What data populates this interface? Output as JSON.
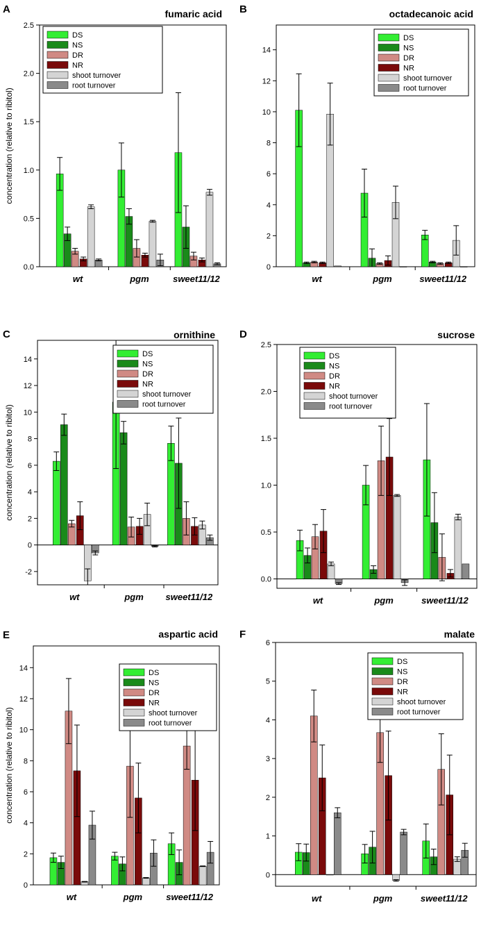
{
  "figure": {
    "series_colors": [
      "#33ee33",
      "#1a8a1a",
      "#d08a84",
      "#7a0a0a",
      "#d4d4d4",
      "#8a8a8a"
    ]
  },
  "chart_data": [
    {
      "panel_label": "A",
      "title": "fumaric acid",
      "type": "bar",
      "ylabel": "concentration (relative to ribitol)",
      "xlabel": "",
      "categories": [
        "wt",
        "pgm",
        "sweet11/12"
      ],
      "ylim": [
        0,
        2.5
      ],
      "yticks": [
        0.0,
        0.5,
        1.0,
        1.5,
        2.0,
        2.5
      ],
      "ytick_labels": [
        "0.0",
        "0.5",
        "1.0",
        "1.5",
        "2.0",
        "2.5"
      ],
      "legend": {
        "position": "top-left",
        "entries": [
          "DS",
          "NS",
          "DR",
          "NR",
          "shoot turnover",
          "root turnover"
        ]
      },
      "series": [
        {
          "name": "DS",
          "values": [
            0.96,
            1.0,
            1.18
          ],
          "errors": [
            0.17,
            0.28,
            0.62
          ]
        },
        {
          "name": "NS",
          "values": [
            0.34,
            0.52,
            0.41
          ],
          "errors": [
            0.07,
            0.08,
            0.22
          ]
        },
        {
          "name": "DR",
          "values": [
            0.16,
            0.19,
            0.11
          ],
          "errors": [
            0.03,
            0.09,
            0.04
          ]
        },
        {
          "name": "NR",
          "values": [
            0.08,
            0.12,
            0.07
          ],
          "errors": [
            0.02,
            0.02,
            0.02
          ]
        },
        {
          "name": "shoot turnover",
          "values": [
            0.62,
            0.47,
            0.77
          ],
          "errors": [
            0.02,
            0.01,
            0.03
          ]
        },
        {
          "name": "root turnover",
          "values": [
            0.07,
            0.07,
            0.03
          ],
          "errors": [
            0.01,
            0.06,
            0.01
          ]
        }
      ]
    },
    {
      "panel_label": "B",
      "title": "octadecanoic acid",
      "type": "bar",
      "ylabel": "",
      "xlabel": "",
      "categories": [
        "wt",
        "pgm",
        "sweet11/12"
      ],
      "ylim": [
        0,
        15.6
      ],
      "yticks": [
        0,
        2,
        4,
        6,
        8,
        10,
        12,
        14
      ],
      "ytick_labels": [
        "0",
        "2",
        "4",
        "6",
        "8",
        "10",
        "12",
        "14"
      ],
      "legend": {
        "position": "top-right",
        "entries": [
          "DS",
          "NS",
          "DR",
          "NR",
          "shoot turnover",
          "root turnover"
        ]
      },
      "series": [
        {
          "name": "DS",
          "values": [
            10.1,
            4.75,
            2.05
          ],
          "errors": [
            2.35,
            1.55,
            0.3
          ]
        },
        {
          "name": "NS",
          "values": [
            0.25,
            0.55,
            0.3
          ],
          "errors": [
            0.05,
            0.6,
            0.05
          ]
        },
        {
          "name": "DR",
          "values": [
            0.3,
            0.2,
            0.2
          ],
          "errors": [
            0.05,
            0.05,
            0.05
          ]
        },
        {
          "name": "NR",
          "values": [
            0.25,
            0.4,
            0.25
          ],
          "errors": [
            0.05,
            0.3,
            0.05
          ]
        },
        {
          "name": "shoot turnover",
          "values": [
            9.85,
            4.15,
            1.7
          ],
          "errors": [
            2.0,
            1.05,
            0.95
          ]
        },
        {
          "name": "root turnover",
          "values": [
            0.05,
            0.0,
            0.0
          ],
          "errors": [
            0.0,
            0.0,
            0.0
          ]
        }
      ]
    },
    {
      "panel_label": "C",
      "title": "ornithine",
      "type": "bar",
      "ylabel": "concentration (relative to ribitol)",
      "xlabel": "",
      "categories": [
        "wt",
        "pgm",
        "sweet11/12"
      ],
      "ylim": [
        -3,
        15.4
      ],
      "yticks": [
        -2,
        0,
        2,
        4,
        6,
        8,
        10,
        12,
        14
      ],
      "ytick_labels": [
        "-2",
        "0",
        "2",
        "4",
        "6",
        "8",
        "10",
        "12",
        "14"
      ],
      "legend": {
        "position": "top-right",
        "entries": [
          "DS",
          "NS",
          "DR",
          "NR",
          "shoot turnover",
          "root turnover"
        ]
      },
      "series": [
        {
          "name": "DS",
          "values": [
            6.3,
            10.75,
            7.65
          ],
          "errors": [
            0.7,
            5.0,
            1.3
          ]
        },
        {
          "name": "NS",
          "values": [
            9.05,
            8.45,
            6.15
          ],
          "errors": [
            0.8,
            0.85,
            3.4
          ]
        },
        {
          "name": "DR",
          "values": [
            1.6,
            1.35,
            2.0
          ],
          "errors": [
            0.25,
            0.75,
            1.25
          ]
        },
        {
          "name": "NR",
          "values": [
            2.2,
            1.4,
            1.4
          ],
          "errors": [
            1.05,
            0.6,
            0.65
          ]
        },
        {
          "name": "shoot turnover",
          "values": [
            -2.7,
            2.3,
            1.5
          ],
          "errors": [
            0.9,
            0.85,
            0.3
          ]
        },
        {
          "name": "root turnover",
          "values": [
            -0.6,
            -0.1,
            0.55
          ],
          "errors": [
            0.15,
            0.05,
            0.2
          ]
        }
      ]
    },
    {
      "panel_label": "D",
      "title": "sucrose",
      "type": "bar",
      "ylabel": "",
      "xlabel": "",
      "categories": [
        "wt",
        "pgm",
        "sweet11/12"
      ],
      "ylim": [
        -0.1,
        2.5
      ],
      "yticks": [
        0.0,
        0.5,
        1.0,
        1.5,
        2.0,
        2.5
      ],
      "ytick_labels": [
        "0.0",
        "0.5",
        "1.0",
        "1.5",
        "2.0",
        "2.5"
      ],
      "legend": {
        "position": "top-left",
        "entries": [
          "DS",
          "NS",
          "DR",
          "NR",
          "shoot turnover",
          "root turnover"
        ]
      },
      "series": [
        {
          "name": "DS",
          "values": [
            0.41,
            1.0,
            1.27
          ],
          "errors": [
            0.11,
            0.21,
            0.6
          ]
        },
        {
          "name": "NS",
          "values": [
            0.25,
            0.1,
            0.6
          ],
          "errors": [
            0.08,
            0.04,
            0.32
          ]
        },
        {
          "name": "DR",
          "values": [
            0.45,
            1.26,
            0.23
          ],
          "errors": [
            0.13,
            0.37,
            0.25
          ]
        },
        {
          "name": "NR",
          "values": [
            0.51,
            1.3,
            0.06
          ],
          "errors": [
            0.23,
            0.41,
            0.04
          ]
        },
        {
          "name": "shoot turnover",
          "values": [
            0.16,
            0.89,
            0.66
          ],
          "errors": [
            0.02,
            0.01,
            0.03
          ]
        },
        {
          "name": "root turnover",
          "values": [
            -0.05,
            -0.04,
            0.16
          ],
          "errors": [
            0.01,
            0.03,
            0.0
          ]
        }
      ]
    },
    {
      "panel_label": "E",
      "title": "aspartic acid",
      "type": "bar",
      "ylabel": "concentration (relative to ribitol)",
      "xlabel": "",
      "categories": [
        "wt",
        "pgm",
        "sweet11/12"
      ],
      "ylim": [
        0,
        15.4
      ],
      "yticks": [
        0,
        2,
        4,
        6,
        8,
        10,
        12,
        14
      ],
      "ytick_labels": [
        "0",
        "2",
        "4",
        "6",
        "8",
        "10",
        "12",
        "14"
      ],
      "legend": {
        "position": "top-right",
        "entries": [
          "DS",
          "NS",
          "DR",
          "NR",
          "shoot turnover",
          "root turnover"
        ]
      },
      "series": [
        {
          "name": "DS",
          "values": [
            1.75,
            1.85,
            2.65
          ],
          "errors": [
            0.3,
            0.25,
            0.7
          ]
        },
        {
          "name": "NS",
          "values": [
            1.45,
            1.35,
            1.45
          ],
          "errors": [
            0.4,
            0.45,
            0.8
          ]
        },
        {
          "name": "DR",
          "values": [
            11.2,
            7.65,
            8.95
          ],
          "errors": [
            2.1,
            3.3,
            1.5
          ]
        },
        {
          "name": "NR",
          "values": [
            7.35,
            5.6,
            6.75
          ],
          "errors": [
            2.95,
            2.25,
            3.25
          ]
        },
        {
          "name": "shoot turnover",
          "values": [
            0.2,
            0.45,
            1.2
          ],
          "errors": [
            0.02,
            0.02,
            0.02
          ]
        },
        {
          "name": "root turnover",
          "values": [
            3.85,
            2.05,
            2.1
          ],
          "errors": [
            0.9,
            0.85,
            0.7
          ]
        }
      ]
    },
    {
      "panel_label": "F",
      "title": "malate",
      "type": "bar",
      "ylabel": "",
      "xlabel": "",
      "categories": [
        "wt",
        "pgm",
        "sweet11/12"
      ],
      "ylim": [
        -0.3,
        6
      ],
      "yticks": [
        0,
        1,
        2,
        3,
        4,
        5,
        6
      ],
      "ytick_labels": [
        "0",
        "1",
        "2",
        "3",
        "4",
        "5",
        "6"
      ],
      "legend": {
        "position": "top-right",
        "entries": [
          "DS",
          "NS",
          "DR",
          "NR",
          "shoot turnover",
          "root turnover"
        ]
      },
      "series": [
        {
          "name": "DS",
          "values": [
            0.58,
            0.54,
            0.87
          ],
          "errors": [
            0.22,
            0.24,
            0.44
          ]
        },
        {
          "name": "NS",
          "values": [
            0.57,
            0.71,
            0.46
          ],
          "errors": [
            0.22,
            0.41,
            0.2
          ]
        },
        {
          "name": "DR",
          "values": [
            4.1,
            3.67,
            2.72
          ],
          "errors": [
            0.67,
            0.77,
            0.92
          ]
        },
        {
          "name": "NR",
          "values": [
            2.5,
            2.56,
            2.06
          ],
          "errors": [
            0.85,
            1.15,
            1.03
          ]
        },
        {
          "name": "shoot turnover",
          "values": [
            0.0,
            -0.15,
            0.4
          ],
          "errors": [
            0.0,
            0.02,
            0.06
          ]
        },
        {
          "name": "root turnover",
          "values": [
            1.6,
            1.1,
            0.63
          ],
          "errors": [
            0.13,
            0.07,
            0.18
          ]
        }
      ]
    }
  ]
}
